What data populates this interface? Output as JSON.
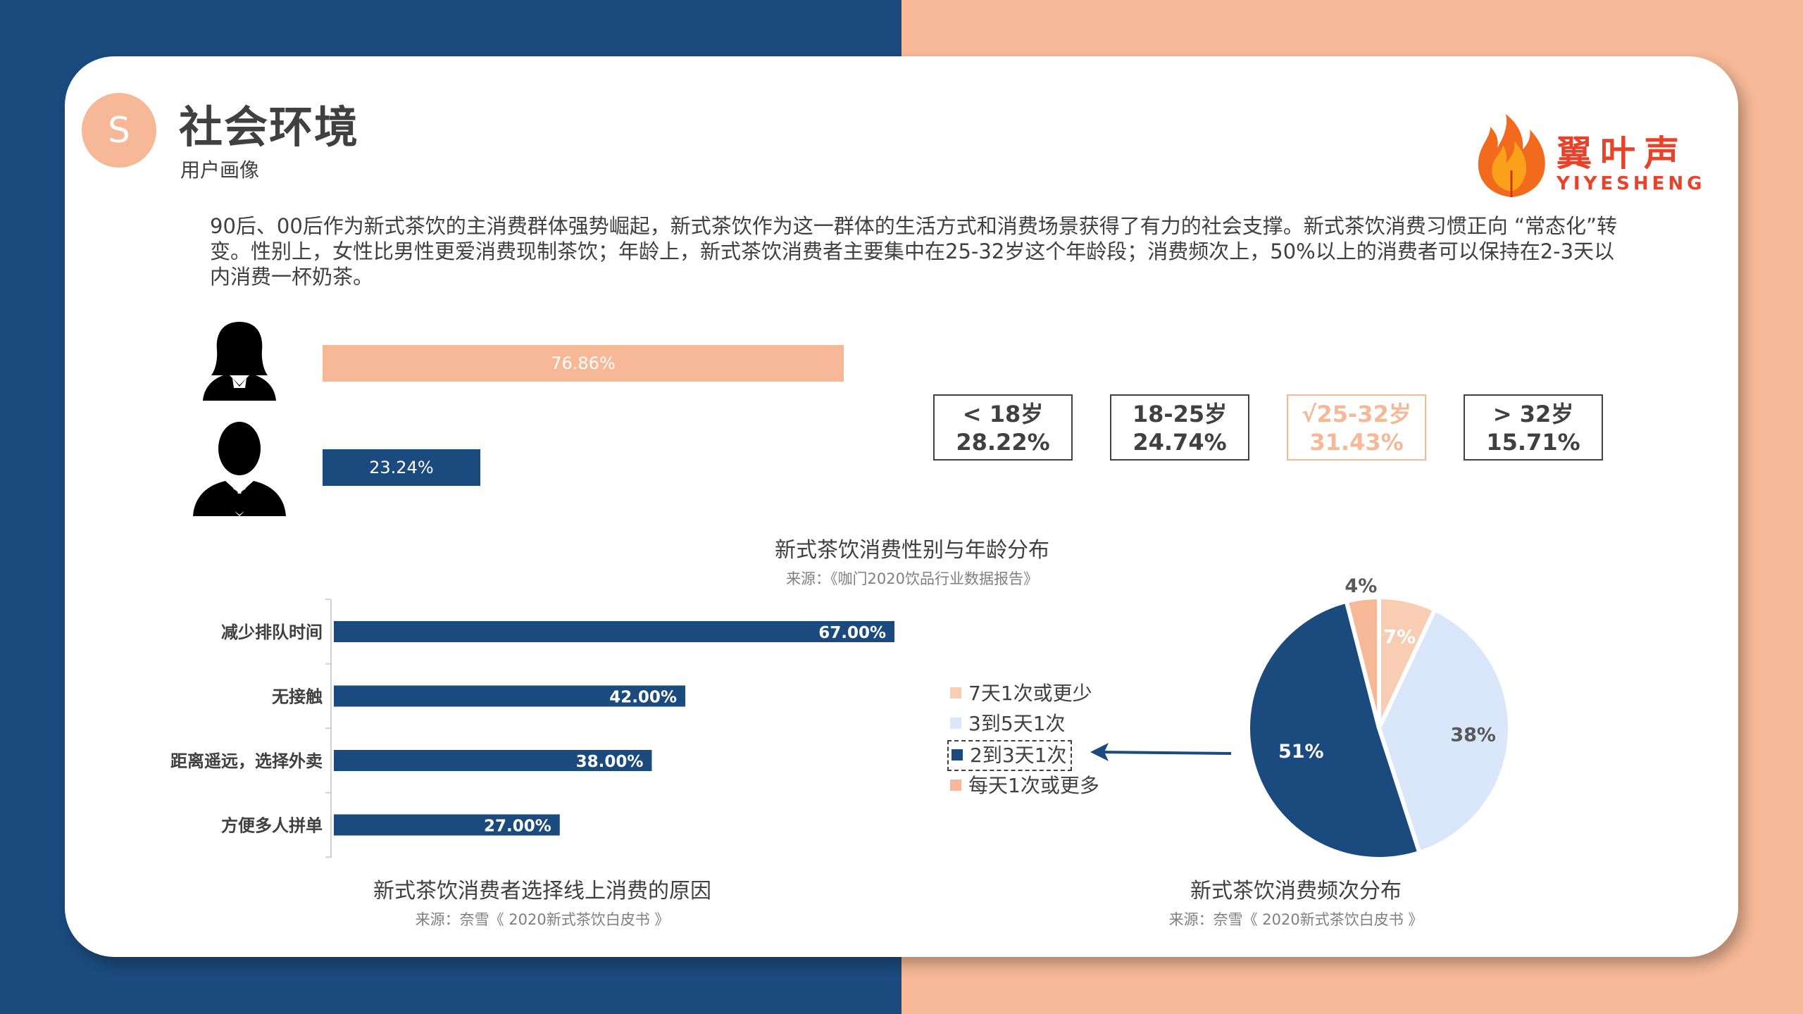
{
  "header": {
    "badge_letter": "S",
    "title": "社会环境",
    "subtitle": "用户画像"
  },
  "logo": {
    "name_cn": "翼叶声",
    "name_en": "YIYESHENG",
    "icon": "flame-leaf-icon"
  },
  "intro_text": "90后、00后作为新式茶饮的主消费群体强势崛起，新式茶饮作为这一群体的生活方式和消费场景获得了有力的社会支撑。新式茶饮消费习惯正向 “常态化”转变。性别上，女性比男性更爱消费现制茶饮；年龄上，新式茶饮消费者主要集中在25-32岁这个年龄段；消费频次上，50%以上的消费者可以保持在2-3天以内消费一杯奶茶。",
  "colors": {
    "navy": "#1b4a7e",
    "peach": "#f6b896",
    "light_peach": "#f8cdb4",
    "light_blue": "#dae6fa",
    "text": "#404040",
    "brand_red": "#e8432a"
  },
  "chart_data": [
    {
      "type": "bar",
      "orientation": "horizontal",
      "categories": [
        "female-icon",
        "male-icon"
      ],
      "values": [
        76.86,
        23.24
      ],
      "value_labels": [
        "76.86%",
        "23.24%"
      ],
      "colors": [
        "#f6b896",
        "#1b4a7e"
      ],
      "age_groups": [
        {
          "label": "< 18岁",
          "value": "28.22%",
          "highlight": false
        },
        {
          "label": "18-25岁",
          "value": "24.74%",
          "highlight": false
        },
        {
          "label": "√25-32岁",
          "value": "31.43%",
          "highlight": true
        },
        {
          "label": "> 32岁",
          "value": "15.71%",
          "highlight": false
        }
      ],
      "title": "新式茶饮消费性别与年龄分布",
      "source": "来源：《咖门2020饮品行业数据报告》"
    },
    {
      "type": "bar",
      "orientation": "horizontal",
      "categories": [
        "减少排队时间",
        "无接触",
        "距离遥远，选择外卖",
        "方便多人拼单"
      ],
      "values": [
        67.0,
        42.0,
        38.0,
        27.0
      ],
      "value_labels": [
        "67.00%",
        "42.00%",
        "38.00%",
        "27.00%"
      ],
      "xlim": [
        0,
        100
      ],
      "color": "#1b4a7e",
      "title": "新式茶饮消费者选择线上消费的原因",
      "source": "来源：奈雪《 2020新式茶饮白皮书 》"
    },
    {
      "type": "pie",
      "slices": [
        {
          "label": "7天1次或更少",
          "value": 7,
          "value_label": "7%",
          "color": "#f8cdb4"
        },
        {
          "label": "3到5天1次",
          "value": 38,
          "value_label": "38%",
          "color": "#dae6fa"
        },
        {
          "label": "2到3天1次",
          "value": 51,
          "value_label": "51%",
          "color": "#1b4a7e"
        },
        {
          "label": "每天1次或更多",
          "value": 4,
          "value_label": "4%",
          "color": "#f6b896"
        }
      ],
      "legend_position": "left",
      "highlighted_slice": "2到3天1次",
      "title": "新式茶饮消费频次分布",
      "source": "来源：奈雪《 2020新式茶饮白皮书 》"
    }
  ]
}
